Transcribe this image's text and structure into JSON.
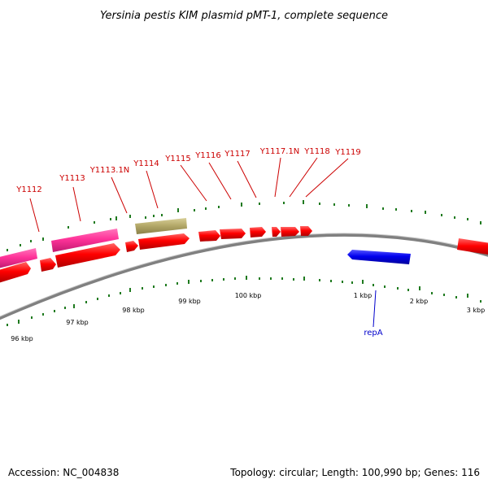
{
  "title": "Yersinia pestis KIM plasmid pMT-1, complete sequence",
  "footer": {
    "accession": "Accession: NC_004838",
    "summary": "Topology: circular; Length: 100,990 bp; Genes: 116"
  },
  "colors": {
    "forward_gene": "#ff0000",
    "reverse_gene": "#0000ee",
    "pseudo_gene": "#ff3399",
    "other_feature": "#b5aa6a",
    "tick": "#1f7a1f",
    "backbone": "#808080",
    "label_red": "#cc0000",
    "label_blue": "#0000cc"
  },
  "gene_labels": [
    "Y1112",
    "Y1113",
    "Y1113.1N",
    "Y1114",
    "Y1115",
    "Y1116",
    "Y1117",
    "Y1117.1N",
    "Y1118",
    "Y1119"
  ],
  "lower_labels": [
    "repA"
  ],
  "tick_labels": [
    "96 kbp",
    "97 kbp",
    "98 kbp",
    "99 kbp",
    "100 kbp",
    "1 kbp",
    "2 kbp",
    "3 kbp"
  ]
}
